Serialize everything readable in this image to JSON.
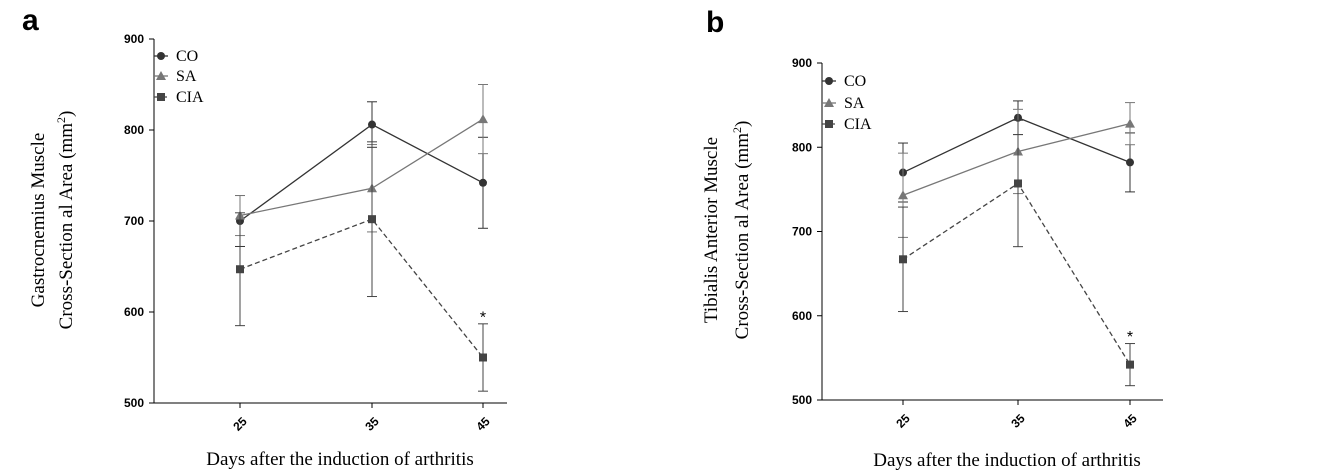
{
  "chart_data": [
    {
      "panel": "a",
      "type": "line",
      "xlabel": "Days after the induction of arthritis",
      "ylabel_line1": "Gastrocnemius Muscle",
      "ylabel_line2": "Cross-Section al Area (mm",
      "ylabel_sup": "2",
      "ylabel_close": ")",
      "categories": [
        "25",
        "35",
        "45"
      ],
      "ylim": [
        500,
        900
      ],
      "yticks": [
        "500",
        "600",
        "700",
        "800",
        "900"
      ],
      "series": [
        {
          "name": "CO",
          "marker": "circle",
          "dashed": false,
          "color": "#333333",
          "values": [
            700,
            806,
            742
          ],
          "errors": [
            28,
            25,
            50
          ]
        },
        {
          "name": "SA",
          "marker": "triangle",
          "dashed": false,
          "color": "#777777",
          "values": [
            706,
            736,
            812
          ],
          "errors": [
            22,
            48,
            38
          ]
        },
        {
          "name": "CIA",
          "marker": "square",
          "dashed": true,
          "color": "#444444",
          "values": [
            647,
            702,
            550
          ],
          "errors": [
            62,
            85,
            37
          ]
        }
      ],
      "annotations": [
        {
          "text": "*",
          "x": "45",
          "y": 595
        }
      ]
    },
    {
      "panel": "b",
      "type": "line",
      "xlabel": "Days after the induction of arthritis",
      "ylabel_line1": "Tibialis Anterior Muscle",
      "ylabel_line2": "Cross-Section al Area (mm",
      "ylabel_sup": "2",
      "ylabel_close": ")",
      "categories": [
        "25",
        "35",
        "45"
      ],
      "ylim": [
        500,
        900
      ],
      "yticks": [
        "500",
        "600",
        "700",
        "800",
        "900"
      ],
      "series": [
        {
          "name": "CO",
          "marker": "circle",
          "dashed": false,
          "color": "#333333",
          "values": [
            770,
            835,
            782
          ],
          "errors": [
            35,
            20,
            35
          ]
        },
        {
          "name": "SA",
          "marker": "triangle",
          "dashed": false,
          "color": "#777777",
          "values": [
            743,
            795,
            828
          ],
          "errors": [
            50,
            50,
            25
          ]
        },
        {
          "name": "CIA",
          "marker": "square",
          "dashed": true,
          "color": "#444444",
          "values": [
            667,
            757,
            542
          ],
          "errors": [
            62,
            75,
            25
          ]
        }
      ],
      "annotations": [
        {
          "text": "*",
          "x": "45",
          "y": 576
        }
      ]
    }
  ]
}
